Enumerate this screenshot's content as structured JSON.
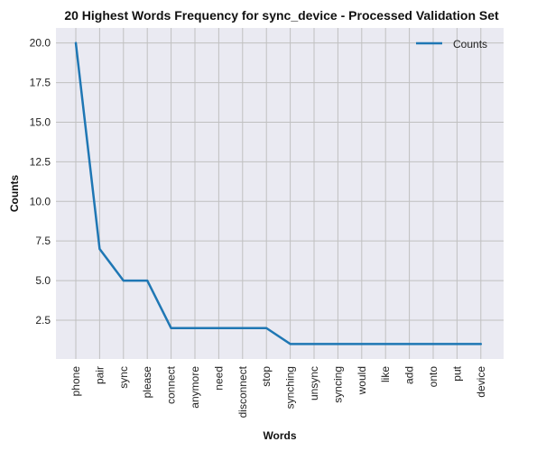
{
  "chart_data": {
    "type": "line",
    "title": "20 Highest Words Frequency for sync_device - Processed Validation Set",
    "xlabel": "Words",
    "ylabel": "Counts",
    "categories": [
      "phone",
      "pair",
      "sync",
      "please",
      "connect",
      "anymore",
      "need",
      "disconnect",
      "stop",
      "synching",
      "unsync",
      "syncing",
      "would",
      "like",
      "add",
      "onto",
      "put",
      "device"
    ],
    "series": [
      {
        "name": "Counts",
        "values": [
          20,
          7,
          5,
          5,
          2,
          2,
          2,
          2,
          2,
          1,
          1,
          1,
          1,
          1,
          1,
          1,
          1,
          1
        ],
        "color": "#1f77b4"
      }
    ],
    "ylim": [
      0.05,
      20.95
    ],
    "yticks": [
      "2.5",
      "5.0",
      "7.5",
      "10.0",
      "12.5",
      "15.0",
      "17.5",
      "20.0"
    ],
    "grid": true,
    "legend_position": "top-right",
    "background_color": "#eaeaf2",
    "grid_color": "#c0c0c0"
  }
}
